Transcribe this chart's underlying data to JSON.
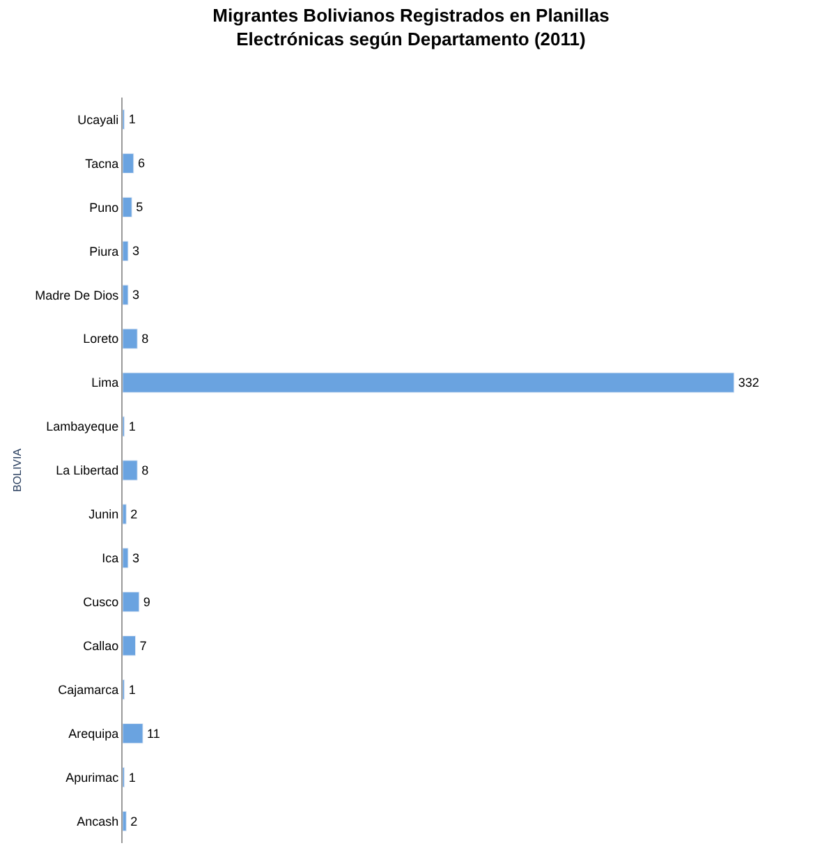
{
  "chart_data": {
    "type": "bar",
    "orientation": "horizontal",
    "title": "Migrantes Bolivianos Registrados en Planillas Electrónicas según Departamento (2011)",
    "ylabel": "BOLIVIA",
    "categories": [
      "Ucayali",
      "Tacna",
      "Puno",
      "Piura",
      "Madre De Dios",
      "Loreto",
      "Lima",
      "Lambayeque",
      "La Libertad",
      "Junin",
      "Ica",
      "Cusco",
      "Callao",
      "Cajamarca",
      "Arequipa",
      "Apurimac",
      "Ancash"
    ],
    "values": [
      1,
      6,
      5,
      3,
      3,
      8,
      332,
      1,
      8,
      2,
      3,
      9,
      7,
      1,
      11,
      1,
      2
    ],
    "color": "#6aa3e0",
    "data_labels": true
  }
}
